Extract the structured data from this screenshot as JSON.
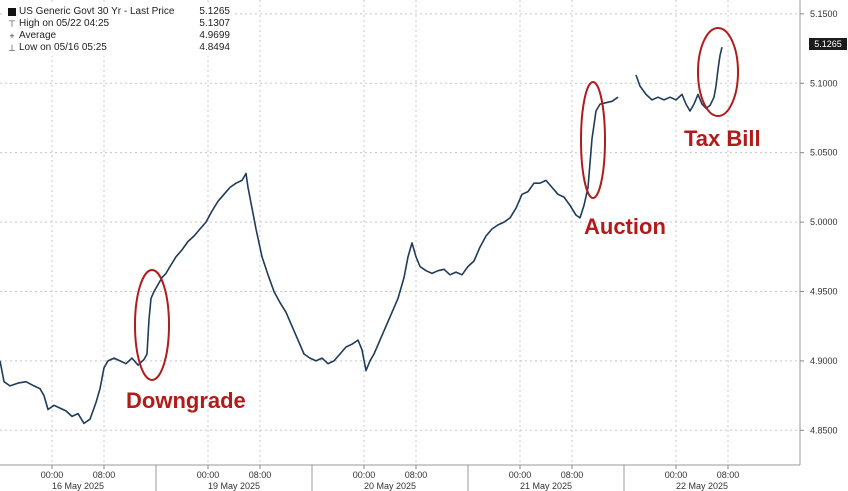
{
  "legend": {
    "title": "US Generic Govt 30 Yr - Last Price",
    "title_value": "5.1265",
    "rows": [
      {
        "label": "High on 05/22 04:25",
        "value": "5.1307"
      },
      {
        "label": "Average",
        "value": "4.9699"
      },
      {
        "label": "Low on 05/16 05:25",
        "value": "4.8494"
      }
    ]
  },
  "last_price_tag": "5.1265",
  "annotations": [
    {
      "text": "Downgrade"
    },
    {
      "text": "Auction"
    },
    {
      "text": "Tax Bill"
    }
  ],
  "colors": {
    "line": "#1f3c5a",
    "annotation": "#b31b1b",
    "grid": "#c8c8c8"
  },
  "chart_data": {
    "type": "line",
    "title": "US Generic Govt 30 Yr - Last Price",
    "ylim": [
      4.825,
      5.16
    ],
    "yticks": [
      4.85,
      4.9,
      4.95,
      5.0,
      5.05,
      5.1,
      5.15
    ],
    "ytick_labels": [
      "4.8500",
      "4.9000",
      "4.9500",
      "5.0000",
      "5.0500",
      "5.1000",
      "5.1500"
    ],
    "time_ticks": [
      "00:00",
      "08:00",
      "00:00",
      "08:00",
      "00:00",
      "08:00",
      "00:00",
      "08:00",
      "00:00",
      "08:00"
    ],
    "day_labels": [
      "16 May 2025",
      "19 May 2025",
      "20 May 2025",
      "21 May 2025",
      "22 May 2025"
    ],
    "day_tick_index": [
      0,
      2,
      4,
      6,
      8
    ],
    "series": [
      {
        "segments": [
          [
            [
              0,
              4.9
            ],
            [
              4,
              4.885
            ],
            [
              10,
              4.882
            ],
            [
              18,
              4.884
            ],
            [
              26,
              4.885
            ],
            [
              34,
              4.882
            ],
            [
              40,
              4.88
            ],
            [
              44,
              4.875
            ],
            [
              48,
              4.865
            ],
            [
              54,
              4.868
            ],
            [
              60,
              4.866
            ],
            [
              66,
              4.864
            ],
            [
              72,
              4.86
            ],
            [
              78,
              4.862
            ],
            [
              84,
              4.855
            ],
            [
              90,
              4.858
            ],
            [
              96,
              4.87
            ],
            [
              100,
              4.88
            ],
            [
              104,
              4.895
            ],
            [
              108,
              4.9
            ],
            [
              114,
              4.902
            ],
            [
              120,
              4.9
            ],
            [
              126,
              4.898
            ],
            [
              132,
              4.902
            ],
            [
              138,
              4.897
            ],
            [
              144,
              4.901
            ],
            [
              147,
              4.905
            ],
            [
              149,
              4.93
            ],
            [
              151,
              4.945
            ],
            [
              154,
              4.95
            ],
            [
              158,
              4.955
            ],
            [
              162,
              4.96
            ],
            [
              166,
              4.963
            ],
            [
              170,
              4.968
            ],
            [
              176,
              4.975
            ],
            [
              182,
              4.98
            ],
            [
              188,
              4.986
            ],
            [
              194,
              4.99
            ],
            [
              200,
              4.995
            ],
            [
              206,
              5.0
            ],
            [
              212,
              5.008
            ],
            [
              218,
              5.015
            ],
            [
              224,
              5.02
            ],
            [
              230,
              5.025
            ],
            [
              236,
              5.028
            ],
            [
              242,
              5.03
            ],
            [
              246,
              5.035
            ],
            [
              248,
              5.025
            ],
            [
              252,
              5.01
            ],
            [
              256,
              4.995
            ],
            [
              262,
              4.975
            ],
            [
              268,
              4.962
            ],
            [
              274,
              4.95
            ],
            [
              280,
              4.942
            ],
            [
              286,
              4.935
            ],
            [
              292,
              4.925
            ],
            [
              298,
              4.915
            ],
            [
              304,
              4.905
            ],
            [
              310,
              4.902
            ],
            [
              316,
              4.9
            ],
            [
              322,
              4.902
            ],
            [
              328,
              4.898
            ],
            [
              334,
              4.9
            ],
            [
              340,
              4.905
            ],
            [
              346,
              4.91
            ],
            [
              352,
              4.912
            ],
            [
              358,
              4.915
            ],
            [
              362,
              4.908
            ],
            [
              366,
              4.893
            ],
            [
              370,
              4.9
            ],
            [
              374,
              4.905
            ],
            [
              380,
              4.915
            ],
            [
              386,
              4.925
            ],
            [
              392,
              4.935
            ],
            [
              398,
              4.945
            ],
            [
              404,
              4.96
            ],
            [
              408,
              4.975
            ],
            [
              412,
              4.985
            ],
            [
              416,
              4.975
            ],
            [
              420,
              4.968
            ],
            [
              426,
              4.965
            ],
            [
              432,
              4.963
            ],
            [
              438,
              4.965
            ],
            [
              444,
              4.966
            ],
            [
              450,
              4.962
            ],
            [
              456,
              4.964
            ],
            [
              462,
              4.962
            ],
            [
              468,
              4.968
            ],
            [
              474,
              4.972
            ],
            [
              480,
              4.982
            ],
            [
              486,
              4.99
            ],
            [
              492,
              4.995
            ],
            [
              498,
              4.998
            ],
            [
              504,
              5.0
            ],
            [
              510,
              5.003
            ],
            [
              516,
              5.01
            ],
            [
              522,
              5.02
            ],
            [
              528,
              5.022
            ],
            [
              534,
              5.028
            ],
            [
              540,
              5.028
            ],
            [
              546,
              5.03
            ],
            [
              552,
              5.025
            ],
            [
              558,
              5.02
            ],
            [
              564,
              5.018
            ],
            [
              570,
              5.012
            ],
            [
              576,
              5.005
            ],
            [
              580,
              5.003
            ],
            [
              584,
              5.012
            ],
            [
              588,
              5.025
            ],
            [
              592,
              5.06
            ],
            [
              596,
              5.08
            ],
            [
              600,
              5.085
            ],
            [
              606,
              5.086
            ],
            [
              612,
              5.087
            ],
            [
              618,
              5.09
            ]
          ],
          [
            [
              636,
              5.106
            ],
            [
              640,
              5.098
            ],
            [
              646,
              5.092
            ],
            [
              652,
              5.088
            ],
            [
              658,
              5.09
            ],
            [
              664,
              5.088
            ],
            [
              670,
              5.09
            ],
            [
              676,
              5.088
            ],
            [
              682,
              5.092
            ],
            [
              686,
              5.085
            ],
            [
              690,
              5.08
            ],
            [
              694,
              5.085
            ],
            [
              698,
              5.092
            ],
            [
              702,
              5.085
            ],
            [
              706,
              5.082
            ],
            [
              710,
              5.084
            ],
            [
              714,
              5.09
            ],
            [
              716,
              5.098
            ],
            [
              718,
              5.11
            ],
            [
              720,
              5.12
            ],
            [
              722,
              5.126
            ]
          ]
        ]
      }
    ],
    "xmax": 800
  }
}
